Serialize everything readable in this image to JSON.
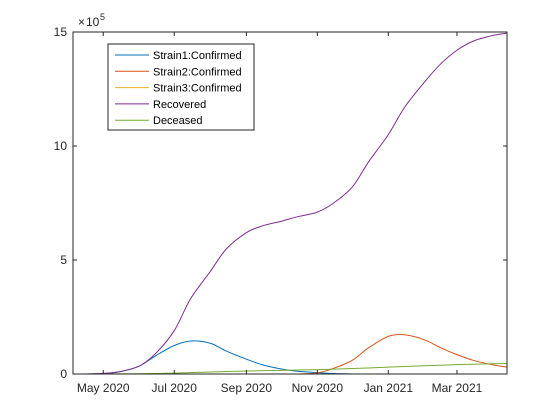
{
  "chart_data": {
    "type": "line",
    "title": "",
    "xlabel": "",
    "ylabel": "",
    "y_exponent_base": "10",
    "y_exponent_power": "5",
    "xlim": [
      "2020-04-05",
      "2021-04-13"
    ],
    "ylim": [
      0,
      15
    ],
    "x_ticks": [
      {
        "date": "2020-05-01",
        "label": "May 2020"
      },
      {
        "date": "2020-07-01",
        "label": "Jul 2020"
      },
      {
        "date": "2020-09-01",
        "label": "Sep 2020"
      },
      {
        "date": "2020-11-01",
        "label": "Nov 2020"
      },
      {
        "date": "2021-01-01",
        "label": "Jan 2021"
      },
      {
        "date": "2021-03-01",
        "label": "Mar 2021"
      }
    ],
    "y_ticks": [
      {
        "value": 0,
        "label": "0"
      },
      {
        "value": 5,
        "label": "5"
      },
      {
        "value": 10,
        "label": "10"
      },
      {
        "value": 15,
        "label": "15"
      }
    ],
    "grid": false,
    "legend_position": "top-left",
    "series": [
      {
        "name": "Strain1:Confirmed",
        "color": "#0072BD",
        "x": [
          "2020-04-15",
          "2020-05-01",
          "2020-05-15",
          "2020-06-01",
          "2020-06-15",
          "2020-07-01",
          "2020-07-15",
          "2020-08-01",
          "2020-08-15",
          "2020-09-01",
          "2020-09-15",
          "2020-10-01",
          "2020-10-15",
          "2020-11-01",
          "2020-11-15",
          "2020-12-01"
        ],
        "y": [
          0,
          0.02,
          0.1,
          0.35,
          0.8,
          1.25,
          1.45,
          1.35,
          1.0,
          0.65,
          0.4,
          0.22,
          0.12,
          0.06,
          0.02,
          0
        ]
      },
      {
        "name": "Strain2:Confirmed",
        "color": "#D95319",
        "x": [
          "2020-10-15",
          "2020-11-01",
          "2020-11-15",
          "2020-12-01",
          "2020-12-15",
          "2021-01-01",
          "2021-01-15",
          "2021-02-01",
          "2021-02-15",
          "2021-03-01",
          "2021-03-15",
          "2021-04-01",
          "2021-04-13"
        ],
        "y": [
          0,
          0.05,
          0.25,
          0.6,
          1.15,
          1.65,
          1.72,
          1.5,
          1.15,
          0.85,
          0.6,
          0.4,
          0.3
        ]
      },
      {
        "name": "Strain3:Confirmed",
        "color": "#EDB120",
        "x": [
          "2020-04-15",
          "2020-08-01",
          "2020-12-01",
          "2021-04-13"
        ],
        "y": [
          0,
          0,
          0,
          0
        ]
      },
      {
        "name": "Recovered",
        "color": "#7E2F8E",
        "x": [
          "2020-04-15",
          "2020-05-01",
          "2020-05-15",
          "2020-06-01",
          "2020-06-15",
          "2020-07-01",
          "2020-07-15",
          "2020-08-01",
          "2020-08-15",
          "2020-09-01",
          "2020-09-15",
          "2020-10-01",
          "2020-10-15",
          "2020-11-01",
          "2020-11-15",
          "2020-12-01",
          "2020-12-15",
          "2021-01-01",
          "2021-01-15",
          "2021-02-01",
          "2021-02-15",
          "2021-03-01",
          "2021-03-15",
          "2021-04-01",
          "2021-04-13"
        ],
        "y": [
          0,
          0.03,
          0.1,
          0.35,
          0.9,
          1.9,
          3.3,
          4.5,
          5.5,
          6.2,
          6.5,
          6.7,
          6.9,
          7.1,
          7.5,
          8.2,
          9.3,
          10.5,
          11.7,
          12.8,
          13.6,
          14.2,
          14.6,
          14.85,
          14.95
        ]
      },
      {
        "name": "Deceased",
        "color": "#77AC30",
        "x": [
          "2020-04-15",
          "2020-06-01",
          "2020-07-01",
          "2020-08-01",
          "2020-09-01",
          "2020-10-01",
          "2020-11-01",
          "2020-12-01",
          "2021-01-01",
          "2021-02-01",
          "2021-03-01",
          "2021-04-01",
          "2021-04-13"
        ],
        "y": [
          0,
          0.01,
          0.04,
          0.09,
          0.13,
          0.16,
          0.19,
          0.24,
          0.3,
          0.36,
          0.41,
          0.45,
          0.46
        ]
      }
    ]
  }
}
